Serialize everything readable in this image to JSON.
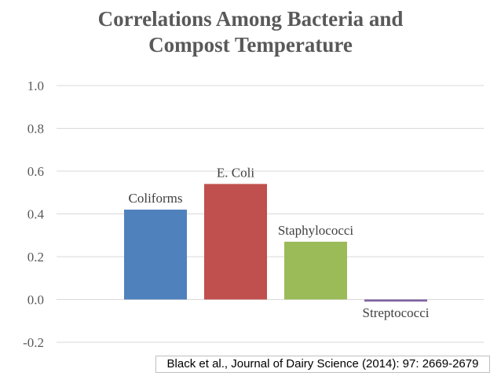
{
  "chart_data": {
    "type": "bar",
    "title_lines": [
      "Correlations Among Bacteria and",
      "Compost Temperature"
    ],
    "title": "Correlations Among Bacteria and Compost Temperature",
    "categories": [
      "Coliforms",
      "E. Coli",
      "Staphylococci",
      "Streptococci"
    ],
    "values": [
      0.42,
      0.54,
      0.27,
      -0.01
    ],
    "colors": [
      "#4f81bd",
      "#c0504d",
      "#9bbb59",
      "#8064a2"
    ],
    "ylim": [
      -0.2,
      1.0
    ],
    "yticks": [
      -0.2,
      0.0,
      0.2,
      0.4,
      0.6,
      0.8,
      1.0
    ],
    "ytick_labels": [
      "-0.2",
      "0.0",
      "0.2",
      "0.4",
      "0.6",
      "0.8",
      "1.0"
    ],
    "xlabel": "",
    "ylabel": "",
    "grid": true,
    "legend": "none"
  },
  "footer": {
    "citation": "Black et al., Journal of Dairy Science (2014): 97: 2669-2679"
  }
}
